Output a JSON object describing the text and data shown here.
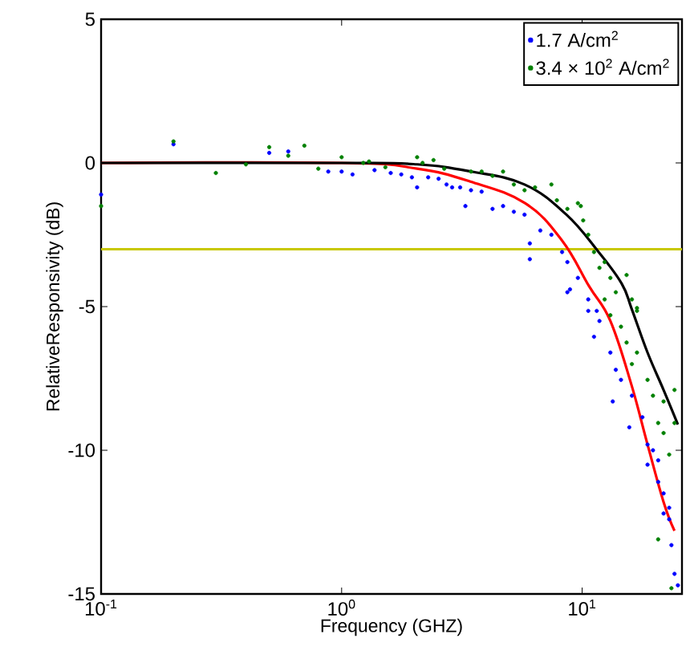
{
  "chart_data": {
    "type": "scatter",
    "xlabel": "Frequency (GHZ)",
    "ylabel": "RelativeResponsivity (dB)",
    "log": "x",
    "legend": "top right",
    "grid": false,
    "xlim": [
      0.1,
      26
    ],
    "ylim": [
      -15,
      5
    ],
    "xticks": [
      {
        "value": 0.1,
        "label": "10$^{-1}$"
      },
      {
        "value": 1,
        "label": "10$^{0}$"
      },
      {
        "value": 10,
        "label": "10$^{1}$"
      }
    ],
    "yticks": [
      -15,
      -10,
      -5,
      0,
      5
    ],
    "ref_lines": [
      {
        "axis": "y",
        "value": -3,
        "color": "#c8c800"
      }
    ],
    "series": [
      {
        "name": "1.7 A/cm$^{2}$",
        "marker": "circle",
        "color": "#0000ff",
        "x": [
          0.1,
          0.2,
          0.5,
          0.6,
          0.88,
          1.0,
          1.11,
          1.37,
          1.6,
          1.77,
          1.96,
          2.06,
          2.29,
          2.53,
          2.73,
          2.88,
          3.11,
          3.27,
          3.45,
          3.82,
          4.24,
          4.69,
          5.2,
          5.76,
          6.06,
          6.06,
          6.7,
          7.45,
          8.25,
          8.68,
          8.9,
          9.6,
          10.6,
          11.5,
          8.68,
          10.6,
          11.2,
          11.8,
          13.1,
          13.8,
          13.4,
          14.5,
          15.7,
          16.1,
          17.8,
          18.7,
          18.7,
          19.7,
          20.7,
          21.8,
          21.8,
          23.0,
          23.5,
          24.2,
          23.0,
          20.7,
          25.0
        ],
        "values": [
          -1.1,
          0.65,
          0.35,
          0.4,
          -0.3,
          -0.3,
          -0.4,
          -0.25,
          -0.35,
          -0.4,
          -0.5,
          -0.85,
          -0.5,
          -0.55,
          -0.75,
          -0.85,
          -0.85,
          -1.5,
          -0.95,
          -1.0,
          -1.6,
          -1.5,
          -1.7,
          -1.8,
          -2.8,
          -3.35,
          -2.35,
          -2.5,
          -3.1,
          -3.45,
          -4.4,
          -4.0,
          -4.75,
          -5.15,
          -4.5,
          -5.15,
          -6.05,
          -5.5,
          -6.6,
          -7.2,
          -8.3,
          -7.55,
          -9.2,
          -8.1,
          -8.85,
          -9.8,
          -10.5,
          -10.0,
          -11.1,
          -11.5,
          -12.2,
          -12.4,
          -13.3,
          -14.3,
          -12.0,
          -10.35,
          -14.7
        ]
      },
      {
        "name": "3.4 × 10$^{2}$ A/cm$^{2}$",
        "marker": "circle",
        "color": "#008000",
        "x": [
          0.1,
          0.2,
          0.3,
          0.4,
          0.5,
          0.6,
          0.7,
          0.8,
          1.0,
          1.23,
          1.3,
          1.52,
          2.06,
          2.17,
          2.41,
          2.67,
          3.45,
          3.82,
          4.24,
          4.69,
          5.2,
          5.76,
          6.37,
          7.45,
          7.85,
          8.68,
          9.6,
          9.87,
          10.1,
          10.6,
          11.2,
          11.8,
          12.4,
          13.1,
          13.8,
          15.3,
          16.1,
          16.9,
          12.4,
          13.1,
          14.5,
          15.3,
          16.1,
          16.9,
          16.9,
          18.7,
          19.7,
          20.7,
          21.8,
          23.0,
          24.2,
          24.2,
          21.8,
          20.7,
          23.5
        ],
        "values": [
          -1.5,
          0.75,
          -0.35,
          -0.05,
          0.55,
          0.25,
          0.6,
          -0.2,
          0.2,
          0.0,
          0.05,
          -0.15,
          0.2,
          0.0,
          0.1,
          -0.2,
          -0.3,
          -0.3,
          -0.45,
          -0.3,
          -0.75,
          -0.95,
          -0.85,
          -0.75,
          -1.3,
          -1.6,
          -1.4,
          -1.5,
          -2.0,
          -2.5,
          -3.1,
          -3.65,
          -3.45,
          -4.0,
          -4.5,
          -3.9,
          -4.75,
          -5.05,
          -4.75,
          -5.3,
          -5.7,
          -6.25,
          -7.0,
          -5.15,
          -6.6,
          -7.55,
          -8.1,
          -9.05,
          -9.4,
          -10.15,
          -7.9,
          -9.05,
          -8.3,
          -13.1,
          -14.8
        ]
      },
      {
        "type": "line",
        "marker": "none",
        "color": "#ff0000",
        "x": [
          0.1,
          1.0,
          2.06,
          3.43,
          5.79,
          8.25,
          10.7,
          13.1,
          16.0,
          18.7,
          21.8,
          24.2
        ],
        "values": [
          0.0,
          0.0,
          -0.2,
          -0.65,
          -1.4,
          -2.7,
          -4.3,
          -5.5,
          -7.7,
          -9.8,
          -11.8,
          -12.8
        ]
      },
      {
        "type": "line",
        "marker": "none",
        "color": "#000000",
        "x": [
          0.1,
          1.0,
          2.06,
          3.45,
          5.76,
          8.6,
          11.7,
          14.6,
          16.1,
          18.7,
          21.8,
          25.0
        ],
        "values": [
          0.0,
          0.0,
          -0.05,
          -0.3,
          -0.75,
          -1.8,
          -3.1,
          -4.2,
          -5.1,
          -6.6,
          -7.9,
          -9.1
        ]
      }
    ]
  }
}
